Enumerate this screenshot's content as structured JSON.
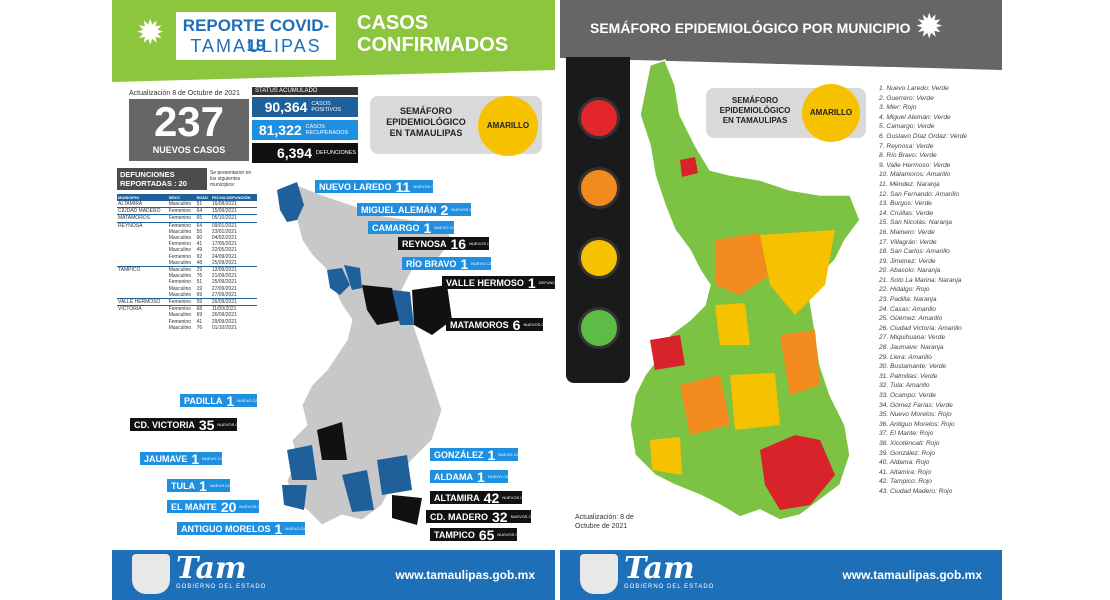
{
  "left": {
    "header": {
      "title_line1": "REPORTE COVID-19",
      "title_line2": "TAMAULIPAS",
      "section_line1": "CASOS",
      "section_line2": "CONFIRMADOS"
    },
    "update_text": "Actualización 8 de Octubre de 2021",
    "new_cases": {
      "value": "237",
      "label": "NUEVOS CASOS"
    },
    "status": {
      "title": "STATUS ACUMULADO",
      "rows": [
        {
          "value": "90,364",
          "label": "CASOS POSITIVOS",
          "color": "#1f5f9a"
        },
        {
          "value": "81,322",
          "label": "CASOS RECUPERADOS",
          "color": "#1f8fe0"
        },
        {
          "value": "6,394",
          "label": "DEFUNCIONES",
          "color": "#111111"
        }
      ]
    },
    "semaforo": {
      "title": "SEMÁFORO EPIDEMIOLÓGICO EN TAMAULIPAS",
      "status": "AMARILLO"
    },
    "deaths": {
      "title": "DEFUNCIONES REPORTADAS : 20",
      "note": "Se presentaron en los siguientes municipios:",
      "headers": [
        "MUNICIPIO",
        "SEXO",
        "EDAD",
        "FECHA DEFUNCIÓN"
      ],
      "rows": [
        [
          "ALTAMIRA",
          "Masculino",
          "51",
          "16/08/2021"
        ],
        [
          "CIUDAD MADERO",
          "Femenino",
          "64",
          "15/09/2021"
        ],
        [
          "MATAMOROS",
          "Femenino",
          "65",
          "05/10/2021"
        ],
        [
          "REYNOSA",
          "Femenino",
          "64",
          "09/01/2021"
        ],
        [
          "",
          "Masculino",
          "55",
          "23/01/2021"
        ],
        [
          "",
          "Masculino",
          "60",
          "04/02/2021"
        ],
        [
          "",
          "Femenino",
          "41",
          "17/05/2021"
        ],
        [
          "",
          "Masculino",
          "49",
          "22/05/2021"
        ],
        [
          "",
          "Femenino",
          "92",
          "24/09/2021"
        ],
        [
          "",
          "Masculino",
          "48",
          "25/09/2021"
        ],
        [
          "TAMPICO",
          "Masculino",
          "29",
          "12/09/2021"
        ],
        [
          "",
          "Masculino",
          "76",
          "21/09/2021"
        ],
        [
          "",
          "Femenino",
          "51",
          "25/09/2021"
        ],
        [
          "",
          "Masculino",
          "19",
          "27/09/2021"
        ],
        [
          "",
          "Masculino",
          "69",
          "27/09/2021"
        ],
        [
          "VALLE HERMOSO",
          "Femenino",
          "59",
          "26/09/2021"
        ],
        [
          "VICTORIA",
          "Femenino",
          "68",
          "11/09/2021"
        ],
        [
          "",
          "Masculino",
          "69",
          "26/09/2021"
        ],
        [
          "",
          "Femenino",
          "41",
          "29/09/2021"
        ],
        [
          "",
          "Masculino",
          "76",
          "01/10/2021"
        ]
      ]
    },
    "map_labels": [
      {
        "name": "NUEVO LAREDO",
        "num": "11",
        "sub": "NUEVOS CASOS",
        "style": "blue"
      },
      {
        "name": "MIGUEL ALEMÁN",
        "num": "2",
        "sub": "NUEVOS CASOS",
        "style": "blue"
      },
      {
        "name": "CAMARGO",
        "num": "1",
        "sub": "NUEVO CASO",
        "style": "blue"
      },
      {
        "name": "REYNOSA",
        "num": "16",
        "sub": "NUEVOS CASOS",
        "style": "black"
      },
      {
        "name": "RÍO BRAVO",
        "num": "1",
        "sub": "NUEVO CASO",
        "style": "blue"
      },
      {
        "name": "VALLE HERMOSO",
        "num": "1",
        "sub": "DEFUNCIÓN",
        "style": "black"
      },
      {
        "name": "MATAMOROS",
        "num": "6",
        "sub": "NUEVOS CASOS",
        "style": "black"
      },
      {
        "name": "PADILLA",
        "num": "1",
        "sub": "NUEVO CASO",
        "style": "blue"
      },
      {
        "name": "CD. VICTORIA",
        "num": "35",
        "sub": "NUEVOS CASOS",
        "style": "black"
      },
      {
        "name": "JAUMAVE",
        "num": "1",
        "sub": "NUEVO CASO",
        "style": "blue"
      },
      {
        "name": "TULA",
        "num": "1",
        "sub": "NUEVO CASO",
        "style": "blue"
      },
      {
        "name": "EL MANTE",
        "num": "20",
        "sub": "NUEVOS CASOS",
        "style": "blue"
      },
      {
        "name": "ANTIGUO MORELOS",
        "num": "1",
        "sub": "NUEVO CASO",
        "style": "blue"
      },
      {
        "name": "GONZÁLEZ",
        "num": "1",
        "sub": "NUEVO CASO",
        "style": "blue"
      },
      {
        "name": "ALDAMA",
        "num": "1",
        "sub": "NUEVO CASO",
        "style": "blue"
      },
      {
        "name": "ALTAMIRA",
        "num": "42",
        "sub": "NUEVOS CASOS",
        "style": "black"
      },
      {
        "name": "CD. MADERO",
        "num": "32",
        "sub": "NUEVOS CASOS",
        "style": "black"
      },
      {
        "name": "TAMPICO",
        "num": "65",
        "sub": "NUEVOS CASOS",
        "style": "black"
      }
    ],
    "footer": {
      "brand": "Tam",
      "brand_sub": "GOBIERNO DEL ESTADO",
      "url": "www.tamaulipas.gob.mx"
    }
  },
  "right": {
    "header": {
      "title": "SEMÁFORO EPIDEMIOLÓGICO POR MUNICIPIO"
    },
    "semaforo": {
      "title": "SEMÁFORO EPIDEMIOLÓGICO EN TAMAULIPAS",
      "status": "AMARILLO"
    },
    "traffic_light_colors": [
      "#e3262b",
      "#f28a1e",
      "#f6c200",
      "#5dbb46"
    ],
    "legend_colors": {
      "Verde": "#7cc243",
      "Amarillo": "#f6c200",
      "Naranja": "#f28a1e",
      "Rojo": "#d9232a"
    },
    "municipalities": [
      "1. Nuevo Laredo: Verde",
      "2. Guerrero: Verde",
      "3. Mier: Rojo",
      "4. Miguel Alemán: Verde",
      "5. Camargo: Verde",
      "6. Gustavo Díaz Ordaz: Verde",
      "7. Reynosa: Verde",
      "8. Río Bravo: Verde",
      "9. Valle Hermoso: Verde",
      "10. Matamoros: Amarillo",
      "11. Méndez: Naranja",
      "12. San Fernando: Amarillo",
      "13. Burgos: Verde",
      "14. Cruillas: Verde",
      "15. San Nicolás: Naranja",
      "16. Mainero: Verde",
      "17. Villagrán: Verde",
      "18. San Carlos: Amarillo",
      "19. Jiménez: Verde",
      "20. Abasolo: Naranja",
      "21. Soto La Marina: Naranja",
      "22. Hidalgo: Rojo",
      "23. Padilla: Naranja",
      "24. Casas: Amarillo",
      "25. Güémez: Amarillo",
      "26. Ciudad Victoria: Amarillo",
      "27. Miquihuana: Verde",
      "28. Jaumave: Naranja",
      "29. Llera: Amarillo",
      "30. Bustamante: Verde",
      "31. Palmillas: Verde",
      "32. Tula: Amarillo",
      "33. Ocampo: Verde",
      "34. Gómez Farías: Verde",
      "35. Nuevo Morelos: Rojo",
      "36. Antiguo Morelos: Rojo",
      "37. El Mante: Rojo",
      "38. Xicoténcatl: Rojo",
      "39. González: Rojo",
      "40. Aldama: Rojo",
      "41. Altamira: Rojo",
      "42. Tampico: Rojo",
      "43. Ciudad Madero: Rojo"
    ],
    "update_text": "Actualización: 8 de Octubre de 2021",
    "footer": {
      "brand": "Tam",
      "brand_sub": "GOBIERNO DEL ESTADO",
      "url": "www.tamaulipas.gob.mx"
    }
  }
}
